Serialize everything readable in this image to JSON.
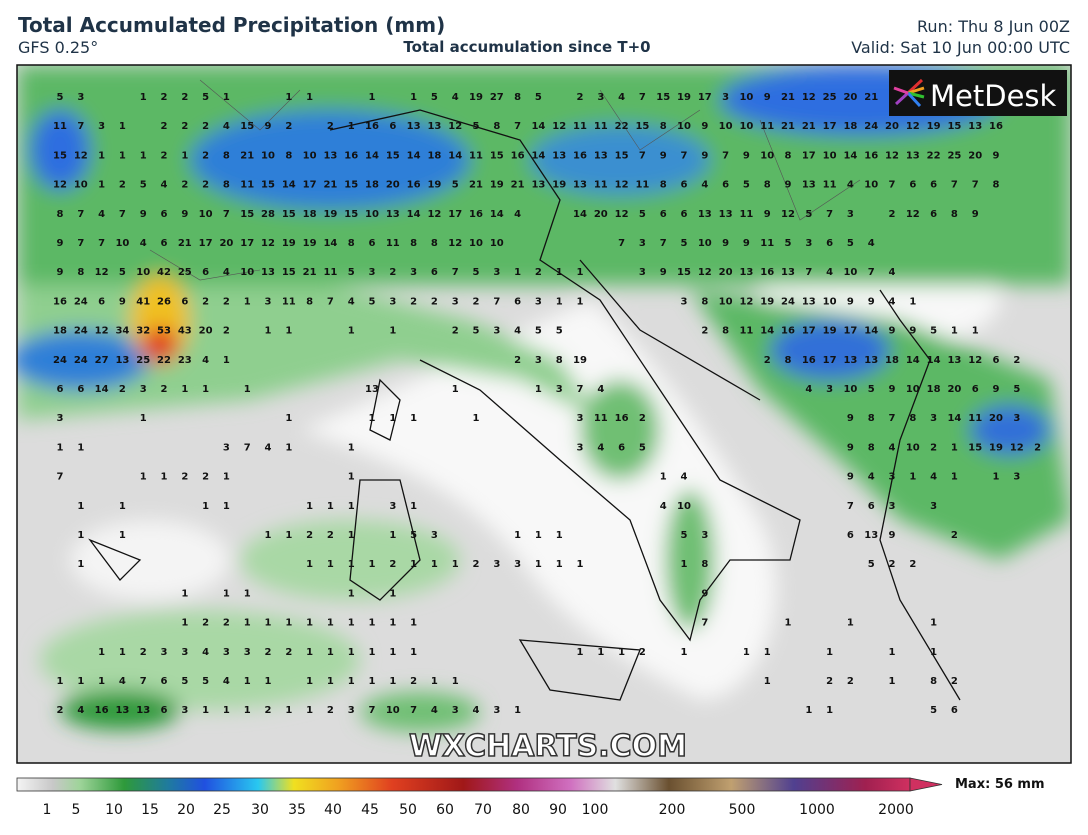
{
  "header": {
    "title": "Total Accumulated Precipitation (mm)",
    "model": "GFS 0.25°",
    "subtitle": "Total accumulation since T+0",
    "run": "Run: Thu 8 Jun 00Z",
    "valid": "Valid: Sat 10 Jun 00:00 UTC"
  },
  "logo": "MetDesk",
  "watermark": "WXCHARTS.COM",
  "map": {
    "grid_values": [
      [
        5,
        3,
        null,
        null,
        1,
        2,
        2,
        5,
        1,
        null,
        null,
        1,
        1,
        null,
        null,
        1,
        null,
        1,
        5,
        4,
        19,
        27,
        8,
        5,
        null,
        2,
        3,
        4,
        7,
        15,
        19,
        17,
        3,
        10,
        9,
        21,
        12,
        25,
        20,
        21
      ],
      [
        11,
        7,
        3,
        1,
        null,
        2,
        2,
        2,
        4,
        15,
        9,
        2,
        null,
        2,
        1,
        16,
        6,
        13,
        13,
        12,
        5,
        8,
        7,
        14,
        12,
        11,
        11,
        22,
        15,
        8,
        10,
        9,
        10,
        10,
        11,
        21,
        21,
        17,
        18,
        24,
        20,
        12,
        19,
        15,
        13,
        16
      ],
      [
        15,
        12,
        1,
        1,
        1,
        2,
        1,
        2,
        8,
        21,
        10,
        8,
        10,
        13,
        16,
        14,
        15,
        14,
        18,
        14,
        11,
        15,
        16,
        14,
        13,
        16,
        13,
        15,
        7,
        9,
        7,
        9,
        7,
        9,
        10,
        8,
        17,
        10,
        14,
        16,
        12,
        13,
        22,
        25,
        20,
        9
      ],
      [
        12,
        10,
        1,
        2,
        5,
        4,
        2,
        2,
        8,
        11,
        15,
        14,
        17,
        21,
        15,
        18,
        20,
        16,
        19,
        5,
        21,
        19,
        21,
        13,
        19,
        13,
        11,
        12,
        11,
        8,
        6,
        4,
        6,
        5,
        8,
        9,
        13,
        11,
        4,
        10,
        7,
        6,
        6,
        7,
        7,
        8
      ],
      [
        8,
        7,
        4,
        7,
        9,
        6,
        9,
        10,
        7,
        15,
        28,
        15,
        18,
        19,
        15,
        10,
        13,
        14,
        12,
        17,
        16,
        14,
        4,
        null,
        null,
        14,
        20,
        12,
        5,
        6,
        6,
        13,
        13,
        11,
        9,
        12,
        5,
        7,
        3,
        null,
        2,
        12,
        6,
        8,
        9
      ],
      [
        9,
        7,
        7,
        10,
        4,
        6,
        21,
        17,
        20,
        17,
        12,
        19,
        19,
        14,
        8,
        6,
        11,
        8,
        8,
        12,
        10,
        10,
        null,
        null,
        null,
        null,
        null,
        7,
        3,
        7,
        5,
        10,
        9,
        9,
        11,
        5,
        3,
        6,
        5,
        4
      ],
      [
        9,
        8,
        12,
        5,
        10,
        42,
        25,
        6,
        4,
        10,
        13,
        15,
        21,
        11,
        5,
        3,
        2,
        3,
        6,
        7,
        5,
        3,
        1,
        2,
        1,
        1,
        null,
        null,
        3,
        9,
        15,
        12,
        20,
        13,
        16,
        13,
        7,
        4,
        10,
        7,
        4
      ],
      [
        16,
        24,
        6,
        9,
        41,
        26,
        6,
        2,
        2,
        1,
        3,
        11,
        8,
        7,
        4,
        5,
        3,
        2,
        2,
        3,
        2,
        7,
        6,
        3,
        1,
        1,
        null,
        null,
        null,
        null,
        3,
        8,
        10,
        12,
        19,
        24,
        13,
        10,
        9,
        9,
        4,
        1
      ],
      [
        18,
        24,
        12,
        34,
        32,
        53,
        43,
        20,
        2,
        null,
        1,
        1,
        null,
        null,
        1,
        null,
        1,
        null,
        null,
        2,
        5,
        3,
        4,
        5,
        5,
        null,
        null,
        null,
        null,
        null,
        null,
        2,
        8,
        11,
        14,
        16,
        17,
        19,
        17,
        14,
        9,
        9,
        5,
        1,
        1
      ],
      [
        24,
        24,
        27,
        13,
        25,
        22,
        23,
        4,
        1,
        null,
        null,
        null,
        null,
        null,
        null,
        null,
        null,
        null,
        null,
        null,
        null,
        null,
        2,
        3,
        8,
        19,
        null,
        null,
        null,
        null,
        null,
        null,
        null,
        null,
        2,
        8,
        16,
        17,
        13,
        13,
        18,
        14,
        14,
        13,
        12,
        6,
        2
      ],
      [
        6,
        6,
        14,
        2,
        3,
        2,
        1,
        1,
        null,
        1,
        null,
        null,
        null,
        null,
        null,
        13,
        null,
        null,
        null,
        1,
        null,
        null,
        null,
        1,
        3,
        7,
        4,
        null,
        null,
        null,
        null,
        null,
        null,
        null,
        null,
        null,
        4,
        3,
        10,
        5,
        9,
        10,
        18,
        20,
        6,
        9,
        5
      ],
      [
        3,
        null,
        null,
        null,
        1,
        null,
        null,
        null,
        null,
        null,
        null,
        1,
        null,
        null,
        null,
        1,
        1,
        1,
        null,
        null,
        1,
        null,
        null,
        null,
        null,
        3,
        11,
        16,
        2,
        null,
        null,
        null,
        null,
        null,
        null,
        null,
        null,
        null,
        9,
        8,
        7,
        8,
        3,
        14,
        11,
        20,
        3
      ],
      [
        1,
        1,
        null,
        null,
        null,
        null,
        null,
        null,
        3,
        7,
        4,
        1,
        null,
        null,
        1,
        null,
        null,
        null,
        null,
        null,
        null,
        null,
        null,
        null,
        null,
        3,
        4,
        6,
        5,
        null,
        null,
        null,
        null,
        null,
        null,
        null,
        null,
        null,
        9,
        8,
        4,
        10,
        2,
        1,
        15,
        19,
        12,
        2
      ],
      [
        7,
        null,
        null,
        null,
        1,
        1,
        2,
        2,
        1,
        null,
        null,
        null,
        null,
        null,
        1,
        null,
        null,
        null,
        null,
        null,
        null,
        null,
        null,
        null,
        null,
        null,
        null,
        null,
        null,
        1,
        4,
        null,
        null,
        null,
        null,
        null,
        null,
        null,
        9,
        4,
        3,
        1,
        4,
        1,
        null,
        1,
        3
      ],
      [
        null,
        1,
        null,
        1,
        null,
        null,
        null,
        1,
        1,
        null,
        null,
        null,
        1,
        1,
        1,
        null,
        3,
        1,
        null,
        null,
        null,
        null,
        null,
        null,
        null,
        null,
        null,
        null,
        null,
        4,
        10,
        null,
        null,
        null,
        null,
        null,
        null,
        null,
        7,
        6,
        3,
        null,
        3
      ],
      [
        null,
        1,
        null,
        1,
        null,
        null,
        null,
        null,
        null,
        null,
        1,
        1,
        2,
        2,
        1,
        null,
        1,
        5,
        3,
        null,
        null,
        null,
        1,
        1,
        1,
        null,
        null,
        null,
        null,
        null,
        5,
        3,
        null,
        null,
        null,
        null,
        null,
        null,
        6,
        13,
        9,
        null,
        null,
        2
      ],
      [
        null,
        1,
        null,
        null,
        null,
        null,
        null,
        null,
        null,
        null,
        null,
        null,
        1,
        1,
        1,
        1,
        2,
        1,
        1,
        1,
        2,
        3,
        3,
        1,
        1,
        1,
        null,
        null,
        null,
        null,
        1,
        8,
        null,
        null,
        null,
        null,
        null,
        null,
        null,
        5,
        2,
        2
      ],
      [
        null,
        null,
        null,
        null,
        null,
        null,
        1,
        null,
        1,
        1,
        null,
        null,
        null,
        null,
        1,
        null,
        1,
        null,
        null,
        null,
        null,
        null,
        null,
        null,
        null,
        null,
        null,
        null,
        null,
        null,
        null,
        9
      ],
      [
        null,
        null,
        null,
        null,
        null,
        null,
        1,
        2,
        2,
        1,
        1,
        1,
        1,
        1,
        1,
        1,
        1,
        1,
        null,
        null,
        null,
        null,
        null,
        null,
        null,
        null,
        null,
        null,
        null,
        null,
        null,
        7,
        null,
        null,
        null,
        1,
        null,
        null,
        1,
        null,
        null,
        null,
        1
      ],
      [
        null,
        null,
        1,
        1,
        2,
        3,
        3,
        4,
        3,
        3,
        2,
        2,
        1,
        1,
        1,
        1,
        1,
        1,
        null,
        null,
        null,
        null,
        null,
        null,
        null,
        1,
        1,
        1,
        2,
        null,
        1,
        null,
        null,
        1,
        1,
        null,
        null,
        1,
        null,
        null,
        1,
        null,
        1
      ],
      [
        1,
        1,
        1,
        4,
        7,
        6,
        5,
        5,
        4,
        1,
        1,
        null,
        1,
        1,
        1,
        1,
        1,
        2,
        1,
        1,
        null,
        null,
        null,
        null,
        null,
        null,
        null,
        null,
        null,
        null,
        null,
        null,
        null,
        null,
        1,
        null,
        null,
        2,
        2,
        null,
        1,
        null,
        8,
        2
      ],
      [
        2,
        4,
        16,
        13,
        13,
        6,
        3,
        1,
        1,
        1,
        2,
        1,
        1,
        2,
        3,
        7,
        10,
        7,
        4,
        3,
        4,
        3,
        1,
        null,
        null,
        null,
        null,
        null,
        null,
        null,
        null,
        null,
        null,
        null,
        null,
        null,
        1,
        1,
        null,
        null,
        null,
        null,
        5,
        6
      ]
    ]
  },
  "colorbar": {
    "labels": [
      1,
      5,
      10,
      15,
      20,
      25,
      30,
      35,
      40,
      45,
      50,
      60,
      70,
      80,
      90,
      100,
      200,
      500,
      1000,
      2000
    ],
    "max_label": "Max: 56 mm"
  }
}
